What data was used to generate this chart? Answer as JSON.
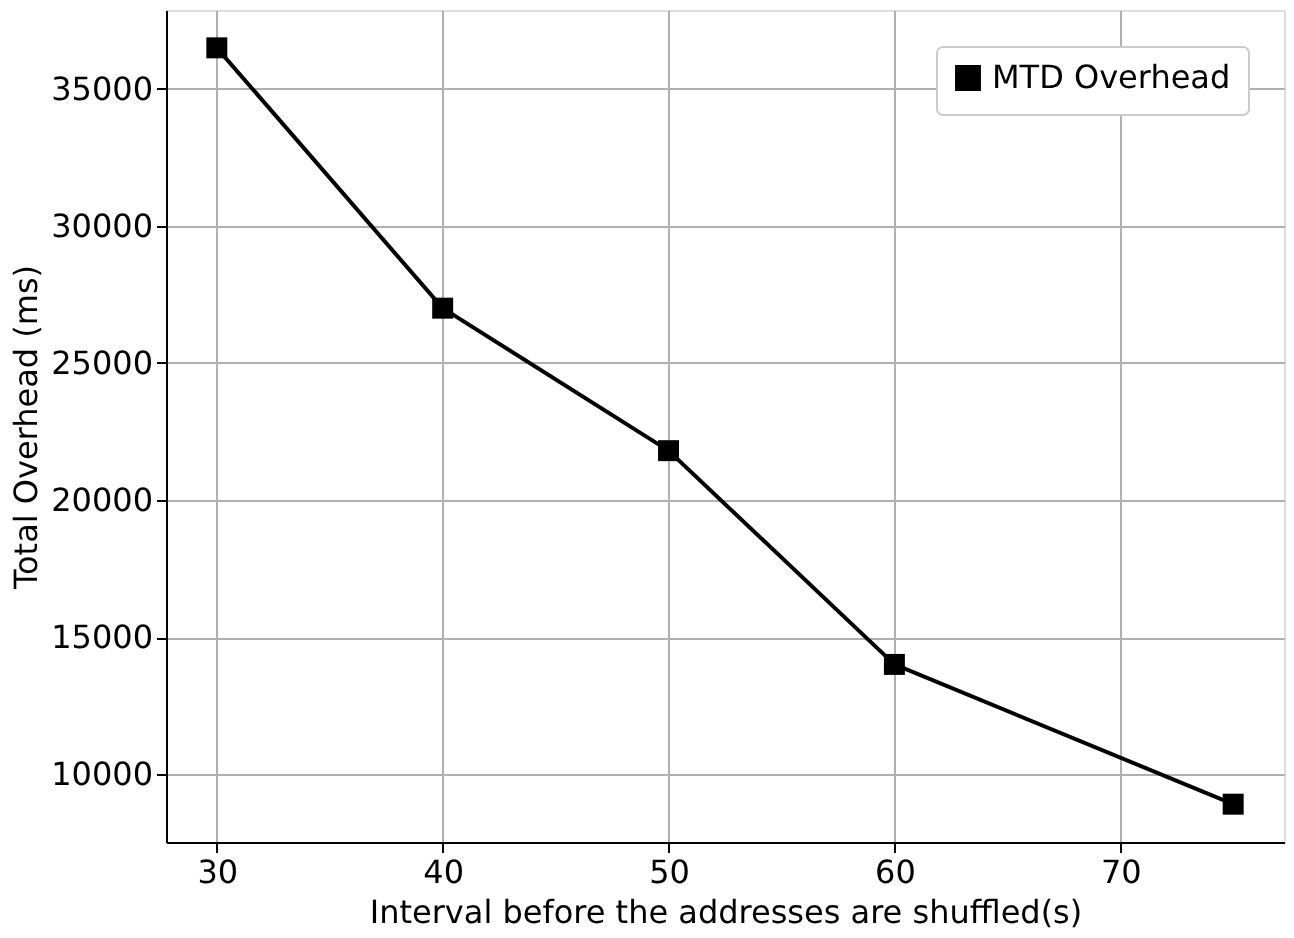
{
  "chart_data": {
    "type": "line",
    "xlabel": "Interval before the addresses are shuffled(s)",
    "ylabel": "Total Overhead (ms)",
    "x": [
      30,
      40,
      50,
      60,
      75
    ],
    "series": [
      {
        "name": "MTD Overhead",
        "color": "#000000",
        "values": [
          36500,
          27000,
          21800,
          14000,
          8900
        ]
      }
    ],
    "xlim": [
      27.75,
      77.25
    ],
    "xticks": [
      30,
      40,
      50,
      60,
      70
    ],
    "ylim": [
      7520,
      37880
    ],
    "yticks": [
      10000,
      15000,
      20000,
      25000,
      30000,
      35000
    ],
    "grid": true,
    "legend": "top right",
    "marker": "square",
    "line_style": "solid"
  }
}
